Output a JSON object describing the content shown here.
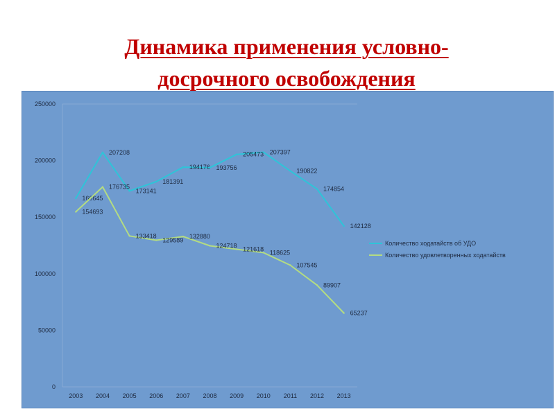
{
  "slide": {
    "title_line1": "Динамика применения условно-",
    "title_line2": "досрочного освобождения"
  },
  "colors": {
    "panel_background": "#6f9bcf",
    "title": "#c00000",
    "series_petitions": "#2ec4d8",
    "series_granted": "#b4dc82"
  },
  "chart_data": {
    "type": "line",
    "title": "",
    "xlabel": "",
    "ylabel": "",
    "categories": [
      "2003",
      "2004",
      "2005",
      "2006",
      "2007",
      "2008",
      "2009",
      "2010",
      "2011",
      "2012",
      "2013"
    ],
    "ylim": [
      0,
      250000
    ],
    "yticks": [
      0,
      50000,
      100000,
      150000,
      200000,
      250000
    ],
    "grid": false,
    "legend_position": "right",
    "series": [
      {
        "name": "Количество ходатайств об УДО",
        "values": [
          166645,
          207208,
          173141,
          181391,
          194176,
          193756,
          205473,
          207397,
          190822,
          174854,
          142128
        ]
      },
      {
        "name": "Количество удовлетворенных ходатайств",
        "values": [
          154693,
          176735,
          133418,
          129589,
          132880,
          124718,
          121618,
          118625,
          107545,
          89907,
          65237
        ]
      }
    ]
  }
}
